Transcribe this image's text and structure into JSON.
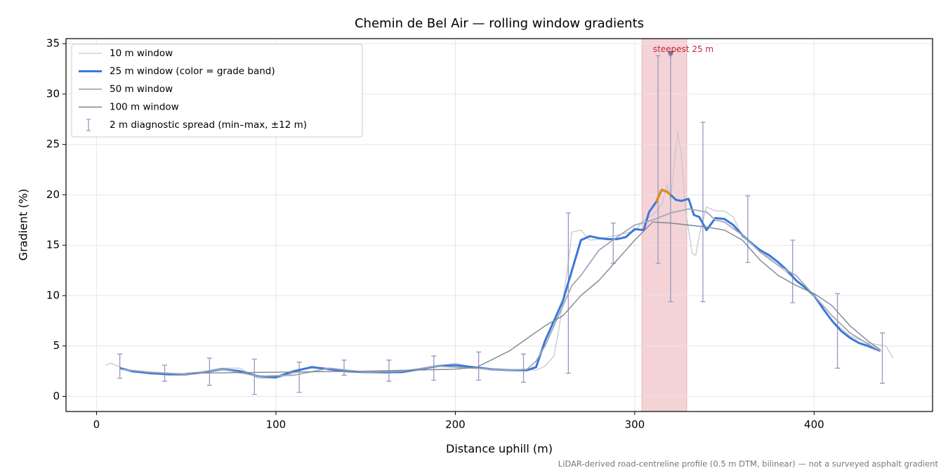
{
  "chart_data": {
    "type": "line",
    "title": "Chemin de Bel Air — rolling window gradients",
    "xlabel": "Distance uphill (m)",
    "ylabel": "Gradient (%)",
    "footnote": "LiDAR-derived road-centreline profile (0.5 m DTM, bilinear) — not a surveyed asphalt gradient",
    "xlim": [
      -17,
      466
    ],
    "ylim": [
      -1.5,
      35.5
    ],
    "xticks": [
      0,
      100,
      200,
      300,
      400
    ],
    "yticks": [
      0,
      5,
      10,
      15,
      20,
      25,
      30,
      35
    ],
    "grid": true,
    "legend": "upper left",
    "highlight": {
      "xlim": [
        304,
        329
      ],
      "color": "#f4d3d6"
    },
    "annotation": {
      "text": "steepest 25 m",
      "x": 320,
      "y": 34,
      "color": "#c0283a"
    },
    "series": [
      {
        "name": "10 m window",
        "color": "#c3c9d3",
        "width": 1.3,
        "x": [
          5,
          8,
          12,
          20,
          30,
          40,
          50,
          60,
          70,
          80,
          90,
          100,
          110,
          120,
          130,
          140,
          150,
          160,
          170,
          180,
          190,
          200,
          210,
          220,
          230,
          240,
          245,
          250,
          255,
          258,
          262,
          265,
          270,
          275,
          280,
          290,
          300,
          305,
          310,
          315,
          318,
          320,
          322,
          324,
          326,
          328,
          330,
          332,
          334,
          336,
          340,
          345,
          350,
          355,
          360,
          365,
          370,
          380,
          390,
          400,
          410,
          420,
          430,
          440,
          444
        ],
        "y": [
          3.1,
          3.3,
          3.0,
          2.4,
          2.3,
          2.1,
          2.1,
          2.5,
          2.8,
          2.8,
          1.8,
          1.8,
          2.3,
          3.0,
          2.6,
          2.4,
          2.4,
          2.3,
          2.4,
          2.7,
          3.0,
          3.3,
          2.9,
          2.6,
          2.6,
          2.7,
          2.6,
          3.0,
          4.0,
          7.0,
          12.0,
          16.3,
          16.5,
          15.5,
          15.6,
          16.0,
          16.4,
          17.5,
          18.0,
          19.0,
          21.0,
          19.5,
          23.0,
          26.2,
          24.0,
          19.0,
          16.5,
          14.2,
          14.0,
          16.0,
          18.8,
          18.4,
          18.4,
          17.8,
          15.8,
          15.3,
          14.5,
          13.0,
          11.5,
          10.0,
          7.5,
          6.0,
          5.3,
          5.0,
          3.8
        ]
      },
      {
        "name": "25 m window (color = grade band)",
        "color": "#3a78d8",
        "width": 3,
        "steep_segment": {
          "xlim": [
            312,
            320
          ],
          "color": "#e08a1e"
        },
        "x": [
          13,
          20,
          30,
          40,
          50,
          60,
          70,
          80,
          90,
          100,
          110,
          120,
          130,
          140,
          150,
          160,
          170,
          180,
          190,
          200,
          210,
          220,
          230,
          240,
          245,
          250,
          255,
          260,
          265,
          270,
          275,
          280,
          285,
          290,
          295,
          300,
          305,
          308,
          312,
          315,
          318,
          320,
          323,
          326,
          330,
          333,
          336,
          340,
          345,
          350,
          355,
          360,
          365,
          370,
          375,
          380,
          385,
          390,
          395,
          400,
          405,
          410,
          415,
          420,
          425,
          430,
          437
        ],
        "y": [
          2.8,
          2.5,
          2.3,
          2.2,
          2.2,
          2.4,
          2.7,
          2.5,
          2.0,
          1.9,
          2.5,
          2.9,
          2.7,
          2.5,
          2.4,
          2.4,
          2.4,
          2.7,
          3.0,
          3.1,
          2.9,
          2.7,
          2.6,
          2.6,
          2.9,
          5.5,
          7.5,
          9.5,
          12.5,
          15.5,
          15.9,
          15.7,
          15.6,
          15.6,
          15.8,
          16.6,
          16.5,
          18.3,
          19.3,
          20.5,
          20.3,
          20.0,
          19.5,
          19.4,
          19.6,
          18.0,
          17.8,
          16.5,
          17.7,
          17.6,
          17.0,
          16.0,
          15.2,
          14.5,
          14.0,
          13.3,
          12.5,
          11.5,
          10.8,
          10.0,
          8.7,
          7.5,
          6.5,
          5.8,
          5.3,
          5.0,
          4.5
        ]
      },
      {
        "name": "50 m window",
        "color": "#a0a8b6",
        "width": 1.8,
        "x": [
          13,
          30,
          50,
          70,
          90,
          110,
          130,
          150,
          170,
          190,
          210,
          230,
          240,
          245,
          250,
          255,
          260,
          265,
          270,
          280,
          290,
          300,
          310,
          320,
          330,
          340,
          345,
          350,
          360,
          370,
          380,
          390,
          400,
          410,
          420,
          430,
          437
        ],
        "y": [
          2.7,
          2.4,
          2.2,
          2.7,
          2.0,
          2.1,
          2.8,
          2.4,
          2.5,
          3.0,
          2.8,
          2.6,
          2.7,
          3.5,
          5.0,
          7.0,
          9.0,
          11.0,
          12.0,
          14.5,
          15.8,
          17.0,
          17.5,
          18.2,
          18.6,
          18.3,
          17.5,
          17.3,
          16.0,
          14.3,
          13.0,
          12.0,
          10.0,
          8.0,
          6.3,
          5.2,
          4.5
        ]
      },
      {
        "name": "100 m window",
        "color": "#7c8696",
        "width": 1.4,
        "x": [
          50,
          100,
          150,
          200,
          212,
          230,
          250,
          260,
          270,
          280,
          290,
          300,
          310,
          320,
          330,
          340,
          350,
          360,
          370,
          380,
          390,
          400,
          410,
          420,
          430,
          437
        ],
        "y": [
          2.3,
          2.4,
          2.5,
          2.7,
          2.9,
          4.5,
          7.0,
          8.0,
          10.0,
          11.5,
          13.5,
          15.5,
          17.3,
          17.2,
          17.0,
          16.8,
          16.5,
          15.5,
          13.5,
          12.0,
          11.0,
          10.2,
          9.0,
          7.0,
          5.5,
          4.6
        ]
      }
    ],
    "errorbars": {
      "name": "2 m diagnostic spread (min–max, ±12 m)",
      "color": "#9a96c0",
      "x": [
        13,
        38,
        63,
        88,
        113,
        138,
        163,
        188,
        213,
        238,
        263,
        288,
        313,
        320,
        338,
        363,
        388,
        413,
        438
      ],
      "low": [
        1.8,
        1.5,
        1.1,
        0.2,
        0.4,
        2.1,
        1.5,
        1.6,
        1.6,
        1.4,
        2.3,
        13.2,
        13.2,
        9.4,
        9.4,
        13.3,
        9.3,
        2.8,
        1.3
      ],
      "high": [
        4.2,
        3.1,
        3.8,
        3.7,
        3.4,
        3.6,
        3.6,
        4.0,
        4.4,
        4.2,
        18.2,
        17.2,
        33.8,
        33.9,
        27.2,
        19.9,
        15.5,
        10.2,
        6.3
      ]
    }
  }
}
